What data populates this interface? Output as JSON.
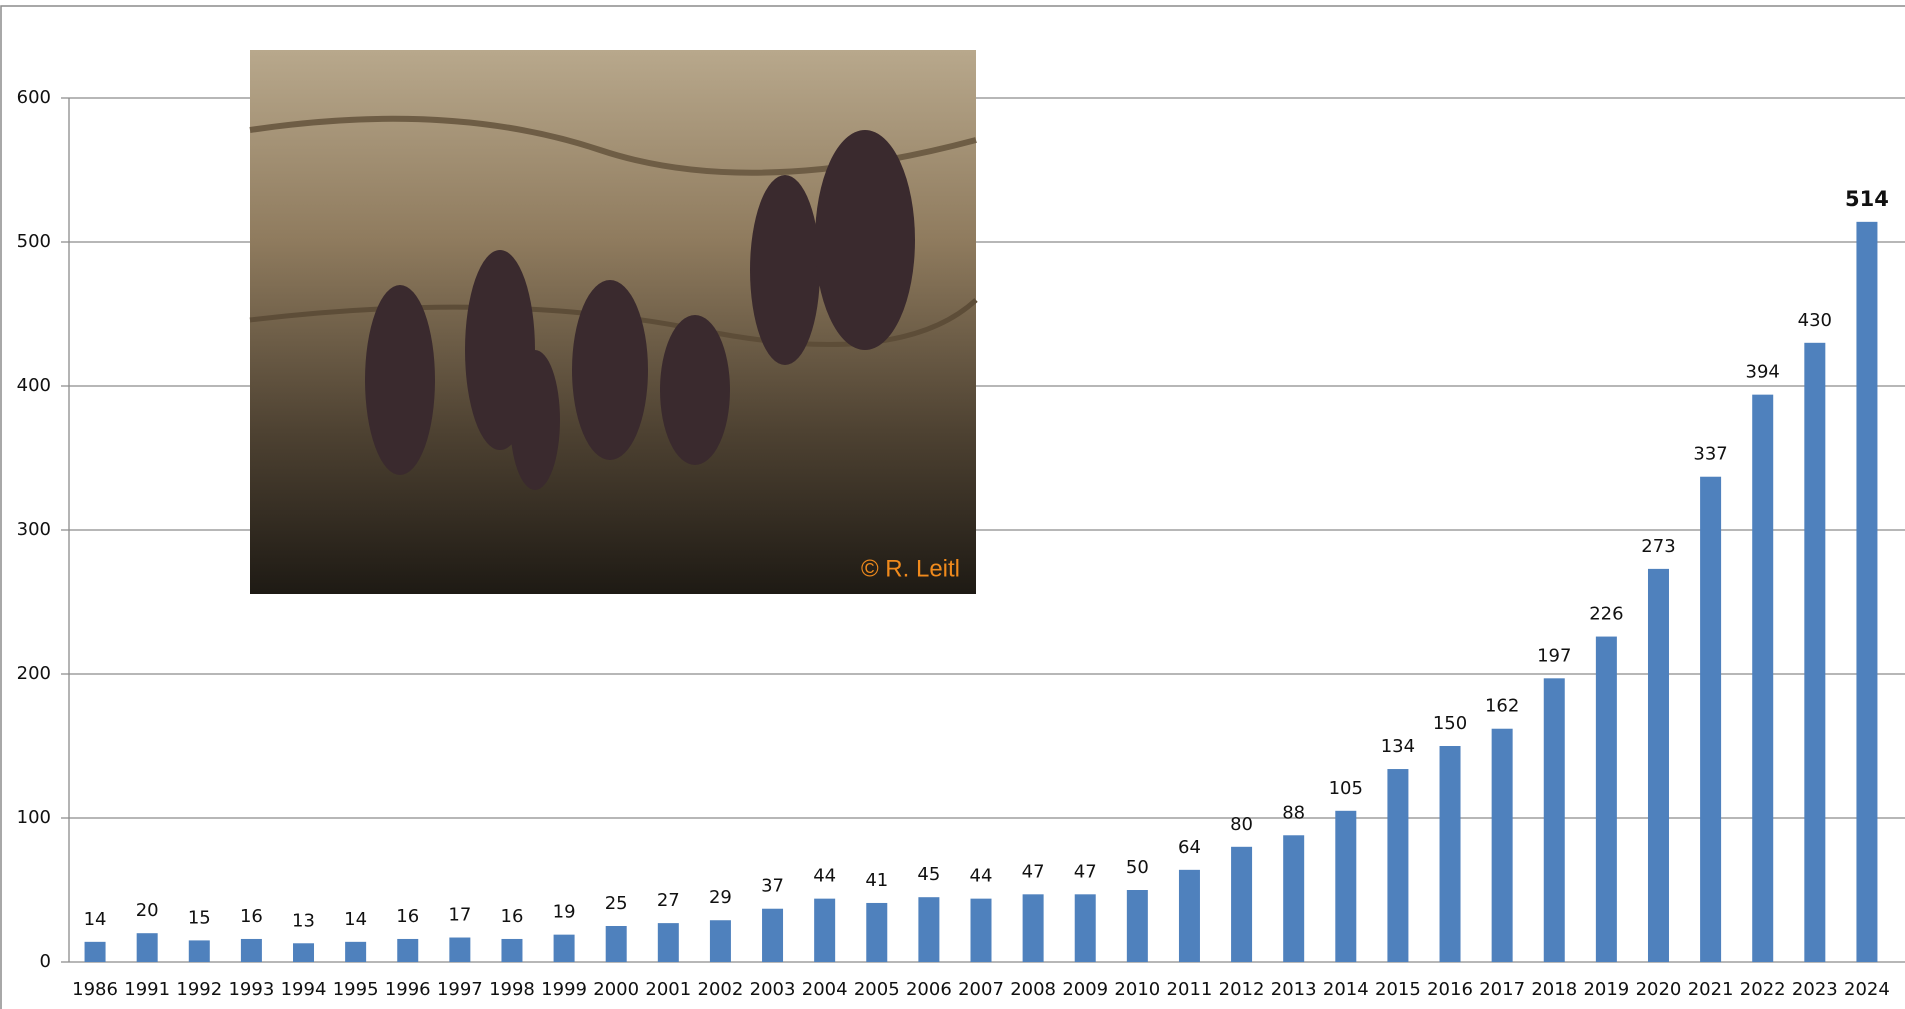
{
  "chart_data": {
    "type": "bar",
    "categories": [
      "1986",
      "1991",
      "1992",
      "1993",
      "1994",
      "1995",
      "1996",
      "1997",
      "1998",
      "1999",
      "2000",
      "2001",
      "2002",
      "2003",
      "2004",
      "2005",
      "2006",
      "2007",
      "2008",
      "2009",
      "2010",
      "2011",
      "2012",
      "2013",
      "2014",
      "2015",
      "2016",
      "2017",
      "2018",
      "2019",
      "2020",
      "2021",
      "2022",
      "2023",
      "2024"
    ],
    "values": [
      14,
      20,
      15,
      16,
      13,
      14,
      16,
      17,
      16,
      19,
      25,
      27,
      29,
      37,
      44,
      41,
      45,
      44,
      47,
      47,
      50,
      64,
      80,
      88,
      105,
      134,
      150,
      162,
      197,
      226,
      273,
      337,
      394,
      430,
      514
    ],
    "color": "#4f81bd",
    "ylim": [
      0,
      600
    ],
    "yticks": [
      0,
      100,
      200,
      300,
      400,
      500,
      600
    ],
    "grid": true,
    "image_credit": "© R. Leitl"
  }
}
